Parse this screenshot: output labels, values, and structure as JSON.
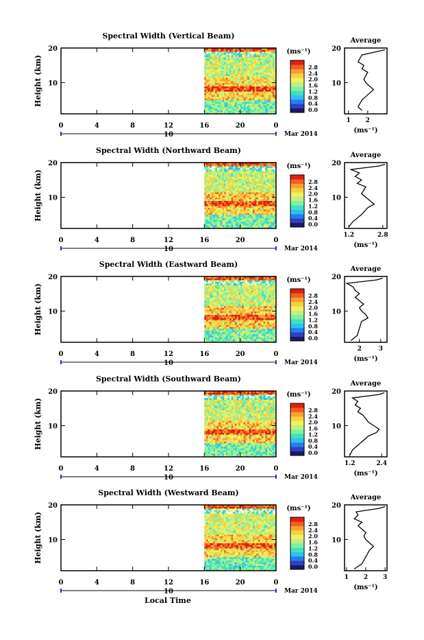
{
  "page": {
    "xlabel": "Local Time",
    "units": "(ms⁻¹)",
    "date_label": "Mar 2014",
    "date_day": "10"
  },
  "chart_data": [
    {
      "type": "heatmap",
      "title": "Spectral Width (Vertical Beam)",
      "ylabel": "Height (km)",
      "xlabel": "Local Time",
      "x_ticks": [
        "0",
        "4",
        "8",
        "12",
        "16",
        "20",
        "0"
      ],
      "y_ticks": [
        "10",
        "20"
      ],
      "ylim": [
        1,
        20
      ],
      "xlim": [
        0,
        24
      ],
      "data_start_hour": 16,
      "colorbar": {
        "label": "(ms⁻¹)",
        "ticks": [
          "0.0",
          "0.4",
          "0.8",
          "1.2",
          "1.6",
          "2.0",
          "2.4",
          "2.8"
        ]
      },
      "average": {
        "title": "Average",
        "xlabel": "(ms⁻¹)",
        "x_ticks": [
          "1",
          "2"
        ],
        "xlim": [
          0.8,
          3.0
        ],
        "profile": [
          [
            1.7,
            2
          ],
          [
            1.5,
            3
          ],
          [
            1.6,
            4
          ],
          [
            1.7,
            5
          ],
          [
            1.9,
            6
          ],
          [
            2.1,
            7
          ],
          [
            2.3,
            8
          ],
          [
            2.1,
            9
          ],
          [
            1.9,
            10
          ],
          [
            1.8,
            11
          ],
          [
            1.9,
            12
          ],
          [
            2.0,
            13
          ],
          [
            1.7,
            14
          ],
          [
            1.8,
            15
          ],
          [
            1.5,
            16
          ],
          [
            1.6,
            17
          ],
          [
            1.7,
            18
          ],
          [
            2.5,
            19
          ],
          [
            2.9,
            19.5
          ]
        ]
      }
    },
    {
      "type": "heatmap",
      "title": "Spectral Width (Northward Beam)",
      "ylabel": "Height (km)",
      "xlabel": "Local Time",
      "x_ticks": [
        "0",
        "4",
        "8",
        "12",
        "16",
        "20",
        "0"
      ],
      "y_ticks": [
        "10",
        "20"
      ],
      "ylim": [
        1,
        20
      ],
      "xlim": [
        0,
        24
      ],
      "data_start_hour": 16,
      "colorbar": {
        "label": "(ms⁻¹)",
        "ticks": [
          "0.0",
          "0.4",
          "0.8",
          "1.2",
          "1.6",
          "2.0",
          "2.4",
          "2.8"
        ]
      },
      "average": {
        "title": "Average",
        "xlabel": "(ms⁻¹)",
        "x_ticks": [
          "1.2",
          "2.8"
        ],
        "xlim": [
          1.0,
          3.0
        ],
        "profile": [
          [
            1.2,
            1.5
          ],
          [
            1.4,
            3
          ],
          [
            1.8,
            5
          ],
          [
            2.1,
            7
          ],
          [
            2.4,
            8
          ],
          [
            2.2,
            9
          ],
          [
            2.0,
            10
          ],
          [
            1.8,
            11
          ],
          [
            1.9,
            12
          ],
          [
            2.0,
            13
          ],
          [
            1.6,
            14
          ],
          [
            1.8,
            15
          ],
          [
            1.5,
            16
          ],
          [
            1.7,
            17
          ],
          [
            1.3,
            18
          ],
          [
            2.6,
            19
          ],
          [
            2.9,
            19.5
          ]
        ]
      }
    },
    {
      "type": "heatmap",
      "title": "Spectral Width (Eastward Beam)",
      "ylabel": "Height (km)",
      "xlabel": "Local Time",
      "x_ticks": [
        "0",
        "4",
        "8",
        "12",
        "16",
        "20",
        "0"
      ],
      "y_ticks": [
        "10",
        "20"
      ],
      "ylim": [
        1,
        20
      ],
      "xlim": [
        0,
        24
      ],
      "data_start_hour": 16,
      "colorbar": {
        "label": "(ms⁻¹)",
        "ticks": [
          "0.0",
          "0.4",
          "0.8",
          "1.2",
          "1.6",
          "2.0",
          "2.4",
          "2.8"
        ]
      },
      "average": {
        "title": "Average",
        "xlabel": "(ms⁻¹)",
        "x_ticks": [
          "2",
          "3"
        ],
        "xlim": [
          1.3,
          3.3
        ],
        "profile": [
          [
            1.6,
            1.5
          ],
          [
            1.9,
            3
          ],
          [
            2.0,
            5
          ],
          [
            2.1,
            7
          ],
          [
            2.4,
            8
          ],
          [
            2.3,
            9
          ],
          [
            2.1,
            10
          ],
          [
            2.0,
            11
          ],
          [
            2.2,
            12
          ],
          [
            2.0,
            13
          ],
          [
            1.8,
            14
          ],
          [
            2.0,
            15
          ],
          [
            1.8,
            16
          ],
          [
            1.7,
            17
          ],
          [
            1.4,
            18
          ],
          [
            2.8,
            19
          ],
          [
            3.1,
            19.5
          ]
        ]
      }
    },
    {
      "type": "heatmap",
      "title": "Spectral Width (Southward Beam)",
      "ylabel": "Height (km)",
      "xlabel": "Local Time",
      "x_ticks": [
        "0",
        "4",
        "8",
        "12",
        "16",
        "20",
        "0"
      ],
      "y_ticks": [
        "10",
        "20"
      ],
      "ylim": [
        1,
        20
      ],
      "xlim": [
        0,
        24
      ],
      "data_start_hour": 16,
      "colorbar": {
        "label": "(ms⁻¹)",
        "ticks": [
          "0.0",
          "0.4",
          "0.8",
          "1.2",
          "1.6",
          "2.0",
          "2.4",
          "2.8"
        ]
      },
      "average": {
        "title": "Average",
        "xlabel": "(ms⁻¹)",
        "x_ticks": [
          "1.2",
          "2.4"
        ],
        "xlim": [
          1.0,
          2.6
        ],
        "profile": [
          [
            1.2,
            1.5
          ],
          [
            1.3,
            3
          ],
          [
            1.6,
            5
          ],
          [
            1.9,
            7
          ],
          [
            2.2,
            8
          ],
          [
            2.3,
            9
          ],
          [
            2.1,
            10
          ],
          [
            1.9,
            11
          ],
          [
            1.8,
            12
          ],
          [
            1.7,
            13
          ],
          [
            1.5,
            14
          ],
          [
            1.6,
            15
          ],
          [
            1.4,
            16
          ],
          [
            1.5,
            17
          ],
          [
            1.3,
            18
          ],
          [
            2.3,
            19
          ],
          [
            2.5,
            19.5
          ]
        ]
      }
    },
    {
      "type": "heatmap",
      "title": "Spectral Width (Westward Beam)",
      "ylabel": "Height (km)",
      "xlabel": "Local Time",
      "x_ticks": [
        "0",
        "4",
        "8",
        "12",
        "16",
        "20",
        "0"
      ],
      "y_ticks": [
        "10",
        "20"
      ],
      "ylim": [
        1,
        20
      ],
      "xlim": [
        0,
        24
      ],
      "data_start_hour": 16,
      "colorbar": {
        "label": "(ms⁻¹)",
        "ticks": [
          "0.0",
          "0.4",
          "0.8",
          "1.2",
          "1.6",
          "2.0",
          "2.4",
          "2.8"
        ]
      },
      "average": {
        "title": "Average",
        "xlabel": "(ms⁻¹)",
        "x_ticks": [
          "1",
          "2",
          "3"
        ],
        "xlim": [
          0.9,
          3.1
        ],
        "profile": [
          [
            1.4,
            1.5
          ],
          [
            1.8,
            3
          ],
          [
            2.0,
            5
          ],
          [
            2.2,
            7
          ],
          [
            2.4,
            8
          ],
          [
            2.2,
            9
          ],
          [
            2.0,
            10
          ],
          [
            1.9,
            11
          ],
          [
            2.0,
            12
          ],
          [
            1.8,
            13
          ],
          [
            1.6,
            14
          ],
          [
            1.8,
            15
          ],
          [
            1.4,
            16
          ],
          [
            1.6,
            17
          ],
          [
            1.5,
            18
          ],
          [
            2.7,
            19
          ],
          [
            3.0,
            19.5
          ]
        ]
      }
    }
  ],
  "colors": {
    "scale": [
      "#1a1a66",
      "#3040c0",
      "#2080f0",
      "#30c0f0",
      "#40e0c0",
      "#80f0a0",
      "#c0f080",
      "#f0f060",
      "#f8d040",
      "#f8a030",
      "#f06020",
      "#e02010"
    ]
  }
}
